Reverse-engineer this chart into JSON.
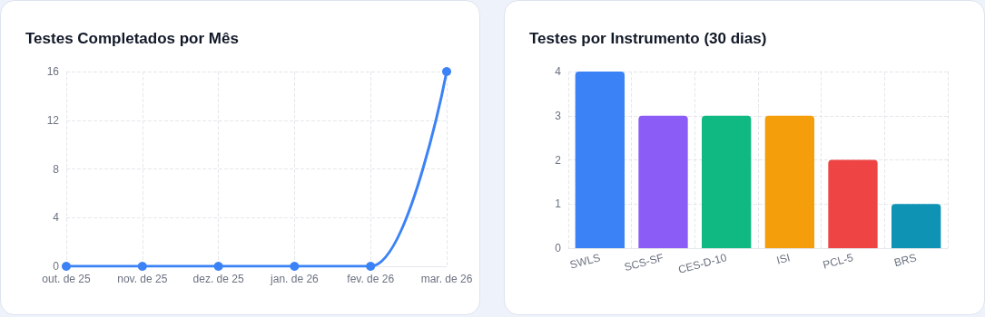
{
  "chart_data": [
    {
      "type": "line",
      "title": "Testes Completados por Mês",
      "categories": [
        "out. de 25",
        "nov. de 25",
        "dez. de 25",
        "jan. de 26",
        "fev. de 26",
        "mar. de 26"
      ],
      "series": [
        {
          "color": "#3b82f6",
          "values": [
            0,
            0,
            0,
            0,
            0,
            16
          ]
        }
      ],
      "ylim": [
        0,
        16
      ],
      "yticks": [
        0,
        4,
        8,
        12,
        16
      ],
      "grid": true,
      "marker": "circle",
      "line_style": "solid"
    },
    {
      "type": "bar",
      "title": "Testes por Instrumento (30 dias)",
      "categories": [
        "SWLS",
        "SCS-SF",
        "CES-D-10",
        "ISI",
        "PCL-5",
        "BRS"
      ],
      "values": [
        4,
        3,
        3,
        3,
        2,
        1
      ],
      "colors": [
        "#3b82f6",
        "#8b5cf6",
        "#10b981",
        "#f59e0b",
        "#ef4444",
        "#0e93b5"
      ],
      "ylim": [
        0,
        4
      ],
      "yticks": [
        0,
        1,
        2,
        3,
        4
      ],
      "grid": true
    }
  ]
}
